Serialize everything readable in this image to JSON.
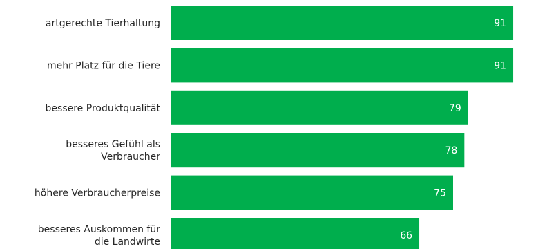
{
  "chart_data": {
    "type": "bar",
    "orientation": "horizontal",
    "categories": [
      [
        "artgerechte Tierhaltung"
      ],
      [
        "mehr Platz für die Tiere"
      ],
      [
        "bessere Produktqualität"
      ],
      [
        "besseres Gefühl als",
        "Verbraucher"
      ],
      [
        "höhere Verbraucherpreise"
      ],
      [
        "besseres Auskommen für",
        "die Landwirte"
      ]
    ],
    "values": [
      91,
      91,
      79,
      78,
      75,
      66
    ],
    "value_labels": [
      "91",
      "91",
      "79",
      "78",
      "75",
      "66"
    ],
    "xlim": [
      0,
      100
    ],
    "grid": false,
    "legend": "none",
    "bar_color": "#00ae4d",
    "value_label_color": "#ffffff",
    "category_label_color": "#262626"
  }
}
